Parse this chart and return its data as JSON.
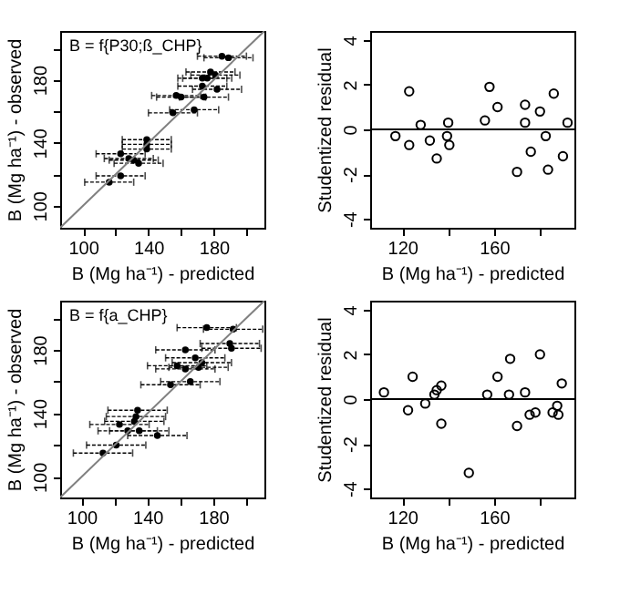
{
  "chart_data": [
    {
      "type": "scatter",
      "annotations": [
        "B = f{P30;ß_CHP}"
      ],
      "xlabel": "B (Mg ha⁻¹) - predicted",
      "ylabel": "B (Mg ha⁻¹) - observed",
      "marker": "circle",
      "grid": false,
      "xlim": [
        86,
        211
      ],
      "ylim": [
        86,
        211
      ],
      "xticks": [
        100,
        {
          "value": 120,
          "label": null
        },
        140,
        {
          "value": 160,
          "label": null
        },
        180,
        {
          "value": 200,
          "label": null
        }
      ],
      "yticks": [
        100,
        {
          "value": 120,
          "label": null
        },
        140,
        {
          "value": 160,
          "label": null
        },
        180,
        {
          "value": 200,
          "label": null
        }
      ],
      "series": [
        {
          "type": "scatter",
          "color": "#000000",
          "x": [
            185,
            189,
            178,
            181,
            173,
            176,
            173,
            182,
            157,
            160,
            174,
            155,
            168,
            139,
            139,
            139,
            123,
            128,
            131,
            134,
            123,
            116
          ],
          "values": [
            195,
            194,
            185,
            183,
            181,
            181,
            176,
            174,
            170,
            169,
            169,
            159,
            161,
            142,
            139,
            136,
            133,
            130,
            129,
            127,
            119,
            115
          ],
          "xerrors": [
            15,
            15,
            15,
            15,
            15,
            15,
            15,
            15,
            15,
            15,
            15,
            15,
            15,
            15,
            15,
            15,
            15,
            15,
            15,
            15,
            15,
            15
          ]
        },
        {
          "type": "line",
          "color": "#808080",
          "marker": "none",
          "line_style": "solid",
          "x": [
            86,
            211
          ],
          "values": [
            86,
            211
          ]
        }
      ]
    },
    {
      "type": "scatter",
      "xlabel": "B (Mg ha⁻¹) - predicted",
      "ylabel": "Studentized residual",
      "marker": "circle",
      "grid": false,
      "xlim": [
        106,
        195
      ],
      "ylim": [
        -4.4,
        4.4
      ],
      "xticks": [
        120,
        {
          "value": 140,
          "label": null
        },
        160,
        {
          "value": 180,
          "label": null
        }
      ],
      "yticks": [
        -4,
        -2,
        0,
        2,
        4
      ],
      "ref_lines": [
        {
          "axis": "y",
          "value": 0,
          "color": "#000000"
        }
      ],
      "series": [
        {
          "type": "scatter",
          "color": "#000000",
          "x": [
            117,
            123,
            123,
            128,
            132,
            135,
            140,
            139.5,
            140.5,
            156,
            158,
            161.5,
            170,
            173.5,
            173.5,
            176,
            180,
            182.5,
            183.5,
            186,
            190,
            192
          ],
          "values": [
            -0.3,
            1.7,
            -0.7,
            0.2,
            -0.5,
            -1.3,
            0.3,
            -0.3,
            -0.7,
            0.4,
            1.9,
            1.0,
            -1.9,
            1.1,
            0.3,
            -1.0,
            0.8,
            -0.3,
            -1.8,
            1.6,
            -1.2,
            0.3
          ]
        }
      ]
    },
    {
      "type": "scatter",
      "annotations": [
        "B = f{a_CHP}"
      ],
      "xlabel": "B (Mg ha⁻¹) - predicted",
      "ylabel": "B (Mg ha⁻¹) - observed",
      "marker": "circle",
      "grid": false,
      "xlim": [
        87,
        211
      ],
      "ylim": [
        87,
        211
      ],
      "xticks": [
        100,
        {
          "value": 120,
          "label": null
        },
        140,
        {
          "value": 160,
          "label": null
        },
        180,
        {
          "value": 200,
          "label": null
        }
      ],
      "yticks": [
        100,
        {
          "value": 120,
          "label": null
        },
        140,
        {
          "value": 160,
          "label": null
        },
        180,
        {
          "value": 200,
          "label": null
        }
      ],
      "series": [
        {
          "type": "scatter",
          "color": "#000000",
          "x": [
            176,
            192,
            163,
            191,
            190,
            169,
            173,
            158,
            163,
            171,
            154,
            166,
            134,
            133,
            132,
            123,
            128,
            135,
            146,
            121,
            113
          ],
          "values": [
            194,
            193,
            180,
            181,
            184,
            175,
            172,
            170,
            168,
            169,
            158,
            160,
            142,
            138,
            135,
            133,
            129,
            129,
            126,
            120,
            115
          ],
          "xerrors": [
            18,
            18,
            18,
            18,
            18,
            18,
            18,
            18,
            18,
            18,
            18,
            18,
            18,
            18,
            18,
            18,
            18,
            18,
            18,
            18,
            18
          ]
        },
        {
          "type": "line",
          "color": "#808080",
          "marker": "none",
          "line_style": "solid",
          "x": [
            87,
            211
          ],
          "values": [
            87,
            211
          ]
        }
      ]
    },
    {
      "type": "scatter",
      "xlabel": "B (Mg ha⁻¹) - predicted",
      "ylabel": "Studentized residual",
      "marker": "circle",
      "grid": false,
      "xlim": [
        106,
        195
      ],
      "ylim": [
        -4.4,
        4.4
      ],
      "xticks": [
        120,
        {
          "value": 140,
          "label": null
        },
        160,
        {
          "value": 180,
          "label": null
        }
      ],
      "yticks": [
        -4,
        -2,
        0,
        2,
        4
      ],
      "ref_lines": [
        {
          "axis": "y",
          "value": 0,
          "color": "#000000"
        }
      ],
      "series": [
        {
          "type": "scatter",
          "color": "#000000",
          "x": [
            112,
            122.5,
            124.5,
            130,
            134,
            135,
            137,
            137,
            149,
            157,
            161.5,
            167,
            166.5,
            170,
            173.5,
            175.5,
            178,
            180,
            185.5,
            187.5,
            188,
            189.5
          ],
          "values": [
            0.3,
            -0.5,
            1.0,
            -0.2,
            0.2,
            0.4,
            0.6,
            -1.1,
            -3.3,
            0.2,
            1.0,
            1.8,
            0.2,
            -1.2,
            0.3,
            -0.7,
            -0.6,
            2.0,
            -0.6,
            -0.3,
            -0.7,
            0.7
          ]
        }
      ]
    }
  ]
}
